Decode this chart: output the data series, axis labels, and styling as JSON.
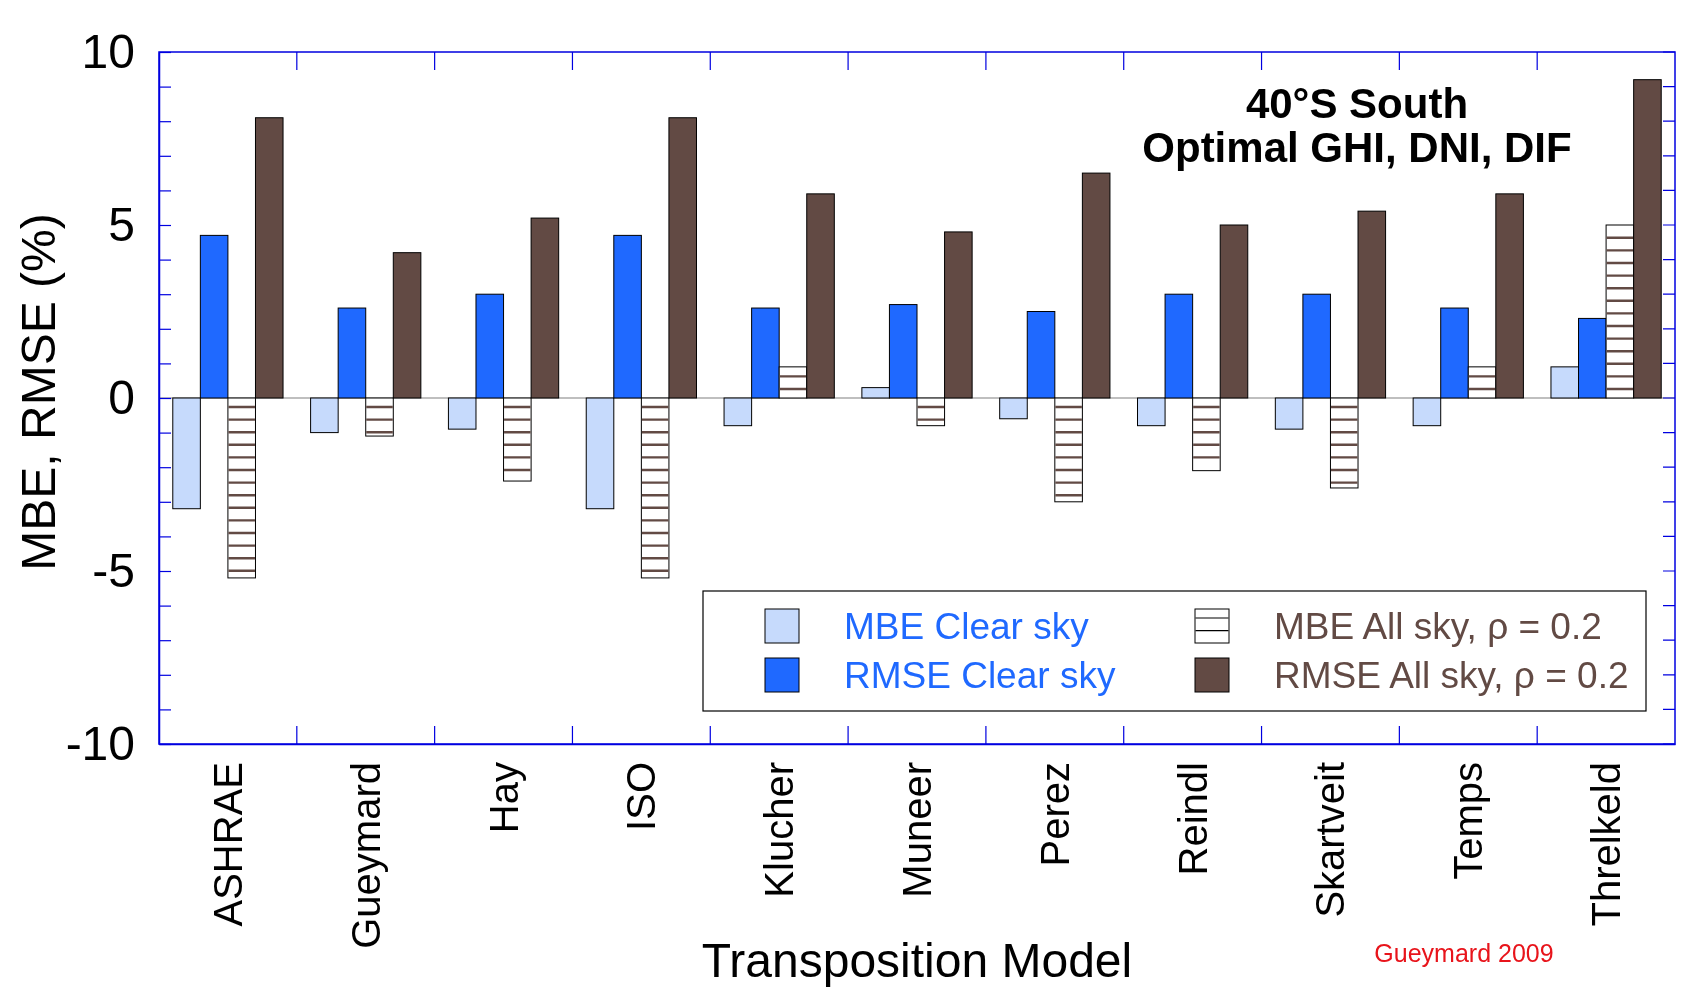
{
  "chart_data": {
    "type": "bar",
    "title": "40°S South",
    "subtitle": "Optimal GHI, DNI, DIF",
    "xlabel": "Transposition Model",
    "ylabel": "MBE, RMSE (%)",
    "categories": [
      "ASHRAE",
      "Gueymard",
      "Hay",
      "ISO",
      "Klucher",
      "Muneer",
      "Perez",
      "Reindl",
      "Skartveit",
      "Temps",
      "Threlkeld"
    ],
    "series": [
      {
        "name": "MBE Clear sky",
        "color": "#c6dafc",
        "values": [
          -3.2,
          -1.0,
          -0.9,
          -3.2,
          -0.8,
          0.3,
          -0.6,
          -0.8,
          -0.9,
          -0.8,
          0.9
        ]
      },
      {
        "name": "RMSE Clear sky",
        "color": "#1f69ff",
        "values": [
          4.7,
          2.6,
          3.0,
          4.7,
          2.6,
          2.7,
          2.5,
          3.0,
          3.0,
          2.6,
          2.3
        ]
      },
      {
        "name": "MBE All sky, ρ = 0.2",
        "color": "#ffffff",
        "values": [
          -5.2,
          -1.1,
          -2.4,
          -5.2,
          0.9,
          -0.8,
          -3.0,
          -2.1,
          -2.6,
          0.9,
          5.0
        ]
      },
      {
        "name": "RMSE All sky, ρ = 0.2",
        "color": "#624a44",
        "values": [
          8.1,
          4.2,
          5.2,
          8.1,
          5.9,
          4.8,
          6.5,
          5.0,
          5.4,
          5.9,
          9.2
        ]
      }
    ],
    "ylim": [
      -10,
      10
    ],
    "yticks": [
      -10,
      {
        "value": -9,
        "label": null
      },
      {
        "value": -8,
        "label": null
      },
      {
        "value": -7,
        "label": null
      },
      {
        "value": -6,
        "label": null
      },
      -5,
      {
        "value": -4,
        "label": null
      },
      {
        "value": -3,
        "label": null
      },
      {
        "value": -2,
        "label": null
      },
      {
        "value": -1,
        "label": null
      },
      0,
      {
        "value": 1,
        "label": null
      },
      {
        "value": 2,
        "label": null
      },
      {
        "value": 3,
        "label": null
      },
      {
        "value": 4,
        "label": null
      },
      5,
      {
        "value": 6,
        "label": null
      },
      {
        "value": 7,
        "label": null
      },
      {
        "value": 8,
        "label": null
      },
      {
        "value": 9,
        "label": null
      },
      10
    ],
    "ref_lines": [
      {
        "axis": "y",
        "value": 0,
        "color": "#808080"
      }
    ],
    "legend": "bottom right",
    "annotations": [
      "Gueymard 2009"
    ]
  }
}
